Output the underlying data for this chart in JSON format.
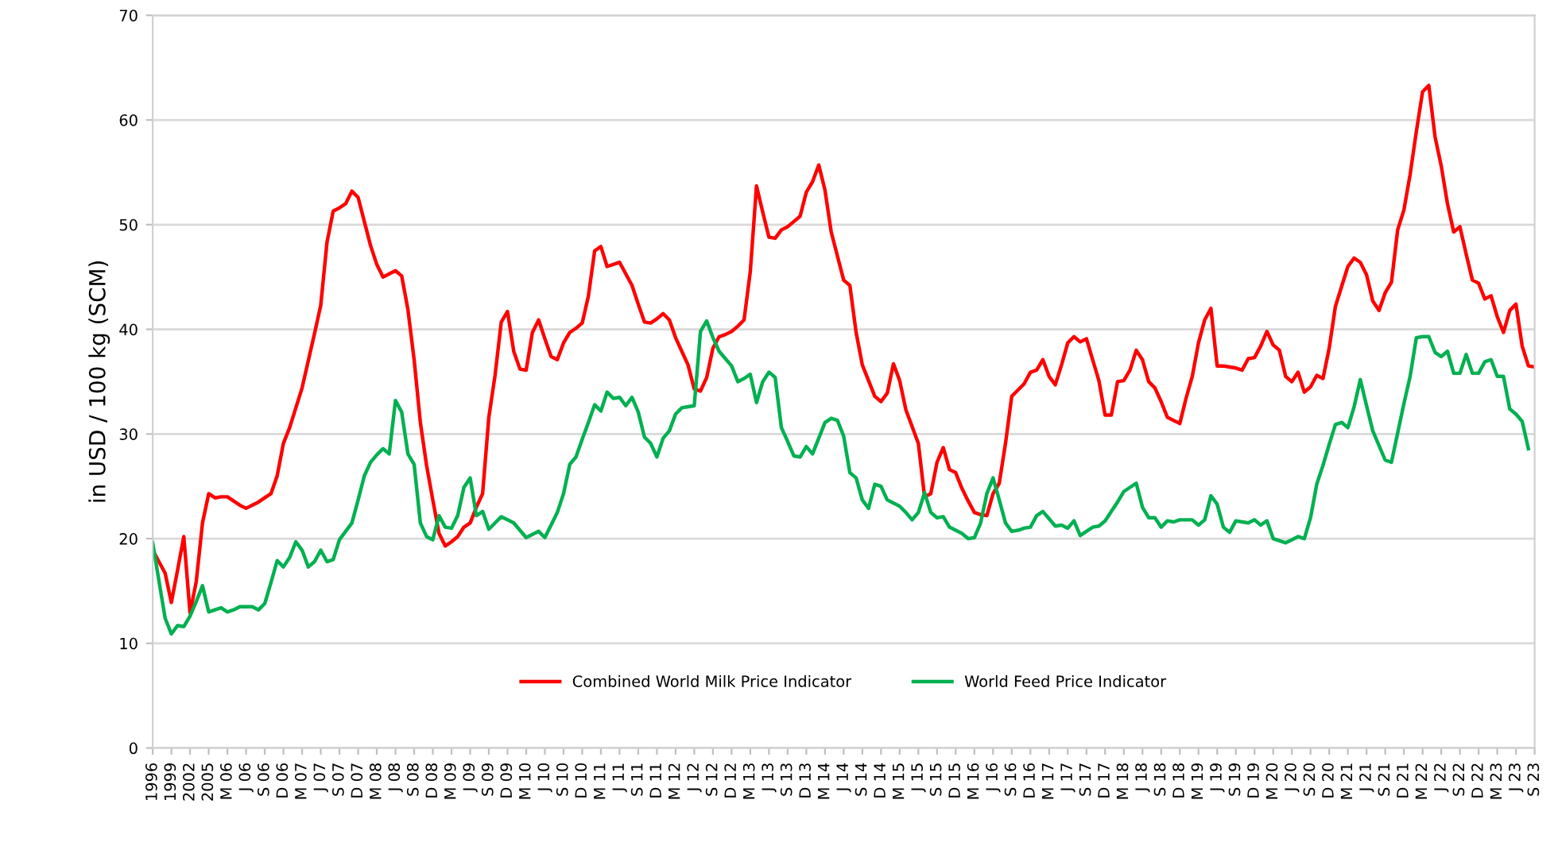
{
  "chart_data": {
    "type": "line",
    "ylabel": "in USD / 100 kg (SCM)",
    "ylim": [
      0,
      70
    ],
    "yticks": [
      0,
      10,
      20,
      30,
      40,
      50,
      60,
      70
    ],
    "categories": [
      "1996",
      null,
      null,
      "1999",
      null,
      null,
      "2002",
      null,
      null,
      "2005",
      null,
      null,
      "M 06",
      null,
      null,
      "J 06",
      null,
      null,
      "S 06",
      null,
      null,
      "D 06",
      null,
      null,
      "M 07",
      null,
      null,
      "J 07",
      null,
      null,
      "S 07",
      null,
      null,
      "D 07",
      null,
      null,
      "M 08",
      null,
      null,
      "J 08",
      null,
      null,
      "S 08",
      null,
      null,
      "D 08",
      null,
      null,
      "M 09",
      null,
      null,
      "J 09",
      null,
      null,
      "S 09",
      null,
      null,
      "D 09",
      null,
      null,
      "M 10",
      null,
      null,
      "J 10",
      null,
      null,
      "S 10",
      null,
      null,
      "D 10",
      null,
      null,
      "M 11",
      null,
      null,
      "J 11",
      null,
      null,
      "S 11",
      null,
      null,
      "D 11",
      null,
      null,
      "M 12",
      null,
      null,
      "J 12",
      null,
      null,
      "S 12",
      null,
      null,
      "D 12",
      null,
      null,
      "M 13",
      null,
      null,
      "J 13",
      null,
      null,
      "S 13",
      null,
      null,
      "D 13",
      null,
      null,
      "M 14",
      null,
      null,
      "J 14",
      null,
      null,
      "S 14",
      null,
      null,
      "D 14",
      null,
      null,
      "M 15",
      null,
      null,
      "J 15",
      null,
      null,
      "S 15",
      null,
      null,
      "D 15",
      null,
      null,
      "M 16",
      null,
      null,
      "J 16",
      null,
      null,
      "S 16",
      null,
      null,
      "D 16",
      null,
      null,
      "M 17",
      null,
      null,
      "J 17",
      null,
      null,
      "S 17",
      null,
      null,
      "D 17",
      null,
      null,
      "M 18",
      null,
      null,
      "J 18",
      null,
      null,
      "S 18",
      null,
      null,
      "D 18",
      null,
      null,
      "M 19",
      null,
      null,
      "J 19",
      null,
      null,
      "S 19",
      null,
      null,
      "D 19",
      null,
      null,
      "M 20",
      null,
      null,
      "J 20",
      null,
      null,
      "S 20",
      null,
      null,
      "D 20",
      null,
      null,
      "M 21",
      null,
      null,
      "J 21",
      null,
      null,
      "S 21",
      null,
      null,
      "D 21",
      null,
      null,
      "M 22",
      null,
      null,
      "J 22",
      null,
      null,
      "S 22",
      null,
      null,
      "D 22",
      null,
      null,
      "M 23",
      null,
      null,
      "J 23",
      null,
      null,
      "S 23"
    ],
    "grid": "y",
    "legend": "bottom",
    "marker": "none",
    "line_style": "solid",
    "series": [
      {
        "name": "Combined World Milk Price Indicator",
        "color": "#ff0000",
        "values": [
          18.9,
          17.8,
          16.7,
          13.9,
          17.0,
          20.2,
          12.9,
          15.9,
          21.5,
          24.3,
          23.9,
          24.0,
          24.0,
          23.6,
          23.2,
          22.9,
          23.2,
          23.5,
          23.9,
          24.3,
          26.0,
          29.1,
          30.6,
          32.5,
          34.4,
          37.0,
          39.6,
          42.3,
          48.3,
          51.3,
          51.6,
          52.0,
          53.2,
          52.6,
          50.3,
          48.0,
          46.2,
          45.0,
          45.3,
          45.6,
          45.1,
          41.9,
          37.1,
          31.1,
          27.0,
          23.7,
          20.5,
          19.3,
          19.7,
          20.2,
          21.1,
          21.5,
          23.0,
          24.3,
          31.6,
          35.6,
          40.7,
          41.7,
          37.9,
          36.2,
          36.1,
          39.7,
          40.9,
          39.1,
          37.4,
          37.1,
          38.7,
          39.7,
          40.1,
          40.6,
          43.2,
          47.5,
          47.9,
          46.0,
          46.2,
          46.4,
          45.3,
          44.2,
          42.4,
          40.7,
          40.6,
          41.0,
          41.5,
          40.9,
          39.2,
          37.9,
          36.6,
          34.3,
          34.1,
          35.4,
          38.2,
          39.3,
          39.5,
          39.8,
          40.3,
          40.9,
          45.5,
          53.7,
          51.2,
          48.8,
          48.7,
          49.5,
          49.8,
          50.3,
          50.8,
          53.1,
          54.1,
          55.7,
          53.3,
          49.3,
          47.0,
          44.7,
          44.2,
          39.7,
          36.6,
          35.1,
          33.6,
          33.1,
          33.9,
          36.7,
          35.1,
          32.3,
          30.7,
          29.1,
          24.0,
          24.3,
          27.3,
          28.7,
          26.6,
          26.3,
          24.8,
          23.6,
          22.5,
          22.3,
          22.2,
          24.3,
          25.3,
          29.1,
          33.6,
          34.2,
          34.8,
          35.9,
          36.1,
          37.1,
          35.5,
          34.7,
          36.6,
          38.7,
          39.3,
          38.8,
          39.1,
          37.1,
          35.1,
          31.8,
          31.8,
          35.0,
          35.1,
          36.1,
          38.0,
          37.1,
          35.0,
          34.4,
          33.1,
          31.6,
          31.3,
          31.0,
          33.4,
          35.5,
          38.7,
          40.9,
          42.0,
          36.5,
          36.5,
          36.4,
          36.3,
          36.1,
          37.2,
          37.3,
          38.4,
          39.8,
          38.5,
          38.0,
          35.5,
          35.0,
          35.9,
          34.0,
          34.5,
          35.6,
          35.3,
          38.2,
          42.2,
          44.1,
          46.0,
          46.8,
          46.4,
          45.2,
          42.7,
          41.8,
          43.5,
          44.5,
          49.5,
          51.4,
          54.8,
          58.9,
          62.7,
          63.3,
          58.4,
          55.6,
          52.0,
          49.3,
          49.8,
          47.2,
          44.7,
          44.4,
          42.9,
          43.2,
          41.2,
          39.7,
          41.8,
          42.4,
          38.4,
          36.5,
          36.4
        ]
      },
      {
        "name": "World Feed Price Indicator",
        "color": "#00b050",
        "values": [
          19.6,
          16.0,
          12.4,
          10.9,
          11.7,
          11.6,
          12.6,
          14.0,
          15.5,
          13.0,
          13.2,
          13.4,
          13.0,
          13.2,
          13.5,
          13.5,
          13.5,
          13.2,
          13.8,
          15.8,
          17.9,
          17.3,
          18.2,
          19.7,
          18.9,
          17.3,
          17.8,
          18.9,
          17.8,
          18.0,
          19.9,
          20.7,
          21.5,
          23.7,
          26.0,
          27.3,
          28.0,
          28.6,
          28.1,
          33.2,
          32.1,
          28.1,
          27.1,
          21.5,
          20.2,
          19.9,
          22.2,
          21.1,
          21.0,
          22.2,
          24.9,
          25.8,
          22.2,
          22.6,
          20.9,
          21.5,
          22.1,
          21.8,
          21.5,
          20.8,
          20.1,
          20.4,
          20.7,
          20.1,
          21.3,
          22.5,
          24.3,
          27.1,
          27.8,
          29.5,
          31.1,
          32.8,
          32.2,
          34.0,
          33.4,
          33.5,
          32.7,
          33.5,
          32.1,
          29.7,
          29.1,
          27.8,
          29.6,
          30.3,
          31.9,
          32.5,
          32.6,
          32.7,
          39.8,
          40.8,
          39.2,
          37.9,
          37.2,
          36.5,
          35.0,
          35.3,
          35.7,
          33.0,
          35.0,
          35.9,
          35.4,
          30.6,
          29.3,
          27.9,
          27.8,
          28.8,
          28.1,
          29.6,
          31.1,
          31.5,
          31.3,
          29.8,
          26.3,
          25.8,
          23.7,
          22.9,
          25.2,
          25.0,
          23.7,
          23.4,
          23.1,
          22.5,
          21.8,
          22.5,
          24.4,
          22.5,
          22.0,
          22.1,
          21.1,
          20.8,
          20.5,
          20.0,
          20.1,
          21.5,
          24.3,
          25.8,
          23.7,
          21.5,
          20.7,
          20.8,
          21.0,
          21.1,
          22.2,
          22.6,
          21.9,
          21.2,
          21.3,
          21.0,
          21.7,
          20.3,
          20.7,
          21.1,
          21.2,
          21.7,
          22.6,
          23.5,
          24.5,
          24.9,
          25.3,
          23.0,
          22.0,
          22.0,
          21.1,
          21.7,
          21.6,
          21.8,
          21.8,
          21.8,
          21.3,
          21.8,
          24.1,
          23.3,
          21.1,
          20.6,
          21.7,
          21.6,
          21.5,
          21.8,
          21.3,
          21.7,
          20.0,
          19.8,
          19.6,
          19.9,
          20.2,
          20.0,
          22.0,
          25.2,
          27.0,
          29.0,
          30.9,
          31.1,
          30.6,
          32.6,
          35.2,
          32.7,
          30.3,
          28.9,
          27.5,
          27.3,
          30.1,
          32.9,
          35.5,
          39.2,
          39.3,
          39.3,
          37.8,
          37.4,
          37.9,
          35.8,
          35.8,
          37.6,
          35.8,
          35.8,
          36.9,
          37.1,
          35.5,
          35.5,
          32.4,
          31.9,
          31.2,
          28.6,
          null
        ]
      }
    ]
  }
}
